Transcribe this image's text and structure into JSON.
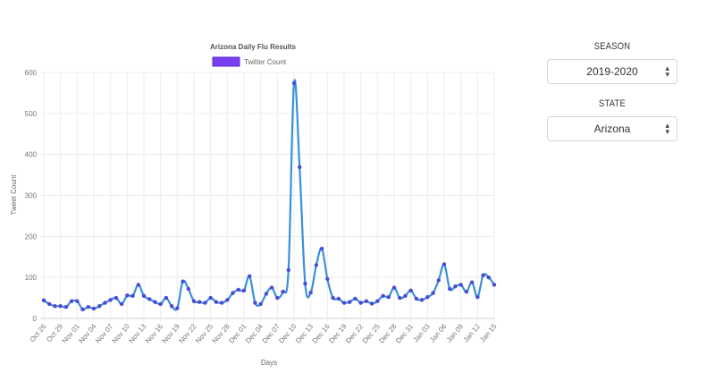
{
  "chart_data": {
    "type": "line",
    "title": "Arizona Daily Flu Results",
    "xlabel": "Days",
    "ylabel": "Tweet Count",
    "ylim": [
      0,
      600
    ],
    "yticks": [
      0,
      100,
      200,
      300,
      400,
      500,
      600
    ],
    "grid": true,
    "legend_position": "top",
    "tick_labels": [
      "Oct 26",
      "Oct 29",
      "Nov 01",
      "Nov 04",
      "Nov 07",
      "Nov 10",
      "Nov 13",
      "Nov 16",
      "Nov 19",
      "Nov 22",
      "Nov 25",
      "Nov 28",
      "Dec 01",
      "Dec 04",
      "Dec 07",
      "Dec 10",
      "Dec 13",
      "Dec 16",
      "Dec 19",
      "Dec 22",
      "Dec 25",
      "Dec 28",
      "Dec 31",
      "Jan 03",
      "Jan 06",
      "Jan 09",
      "Jan 12",
      "Jan 15"
    ],
    "series": [
      {
        "name": "Twitter Count",
        "legend_color": "#7b3ff2",
        "line_color": "#3a8fd9",
        "point_color": "#4a4ad6",
        "values": [
          44,
          35,
          30,
          30,
          28,
          42,
          42,
          22,
          28,
          24,
          30,
          38,
          45,
          50,
          35,
          56,
          55,
          82,
          55,
          47,
          40,
          35,
          50,
          30,
          25,
          90,
          72,
          42,
          40,
          38,
          50,
          40,
          38,
          45,
          62,
          70,
          68,
          103,
          38,
          35,
          60,
          75,
          50,
          65,
          118,
          574,
          369,
          85,
          63,
          130,
          170,
          96,
          50,
          48,
          38,
          40,
          48,
          38,
          42,
          36,
          42,
          55,
          52,
          75,
          50,
          55,
          68,
          48,
          45,
          52,
          62,
          93,
          132,
          72,
          78,
          82,
          65,
          88,
          52,
          105,
          100,
          82
        ]
      }
    ]
  },
  "controls": {
    "season": {
      "label": "SEASON",
      "value": "2019-2020"
    },
    "state": {
      "label": "STATE",
      "value": "Arizona"
    }
  }
}
